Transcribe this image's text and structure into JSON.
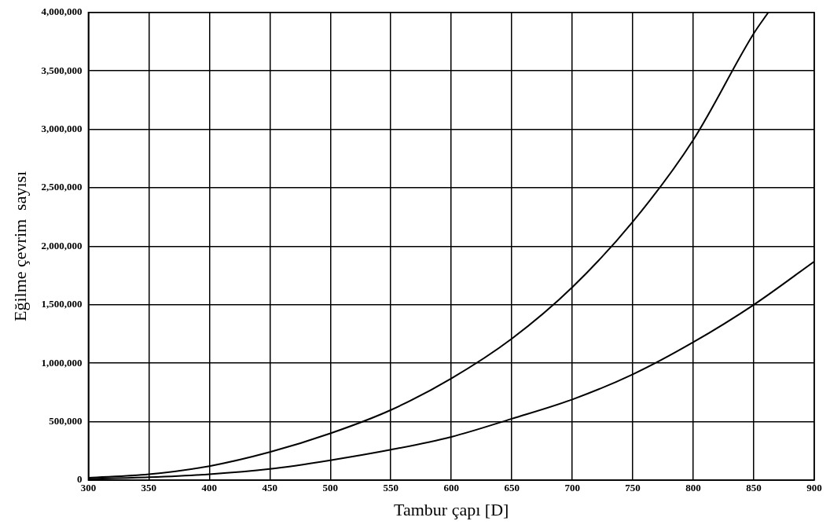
{
  "chart_data": {
    "type": "line",
    "xlabel": "Tambur çapı [D]",
    "ylabel": "Eğilme çevrim  sayısı",
    "series": [
      {
        "color": "#000000",
        "x": [
          300,
          350,
          400,
          450,
          500,
          550,
          600,
          650,
          700,
          750,
          800,
          850,
          862
        ],
        "values": [
          20000,
          50000,
          120000,
          240000,
          400000,
          600000,
          870000,
          1210000,
          1650000,
          2210000,
          2910000,
          3820000,
          4000000
        ]
      },
      {
        "color": "#000000",
        "x": [
          300,
          350,
          400,
          450,
          500,
          550,
          600,
          650,
          700,
          750,
          800,
          850,
          900
        ],
        "values": [
          10000,
          25000,
          50000,
          95000,
          170000,
          260000,
          370000,
          525000,
          690000,
          905000,
          1180000,
          1500000,
          1870000
        ]
      }
    ],
    "xlim": [
      300,
      900
    ],
    "xticks": [
      300,
      350,
      400,
      450,
      500,
      550,
      600,
      650,
      700,
      750,
      800,
      850,
      900
    ],
    "ylim": [
      0,
      4000000
    ],
    "yticks": [
      {
        "value": 0,
        "label": "0"
      },
      {
        "value": 500000,
        "label": "500,000"
      },
      {
        "value": 1000000,
        "label": "1,000,000"
      },
      {
        "value": 1500000,
        "label": "1,500,000"
      },
      {
        "value": 2000000,
        "label": "2,000,000"
      },
      {
        "value": 2500000,
        "label": "2,500,000"
      },
      {
        "value": 3000000,
        "label": "3,000,000"
      },
      {
        "value": 3500000,
        "label": "3,500,000"
      },
      {
        "value": 4000000,
        "label": "4,000,000"
      }
    ],
    "grid": true,
    "legend": false,
    "marker": "none",
    "line_style": "solid"
  }
}
